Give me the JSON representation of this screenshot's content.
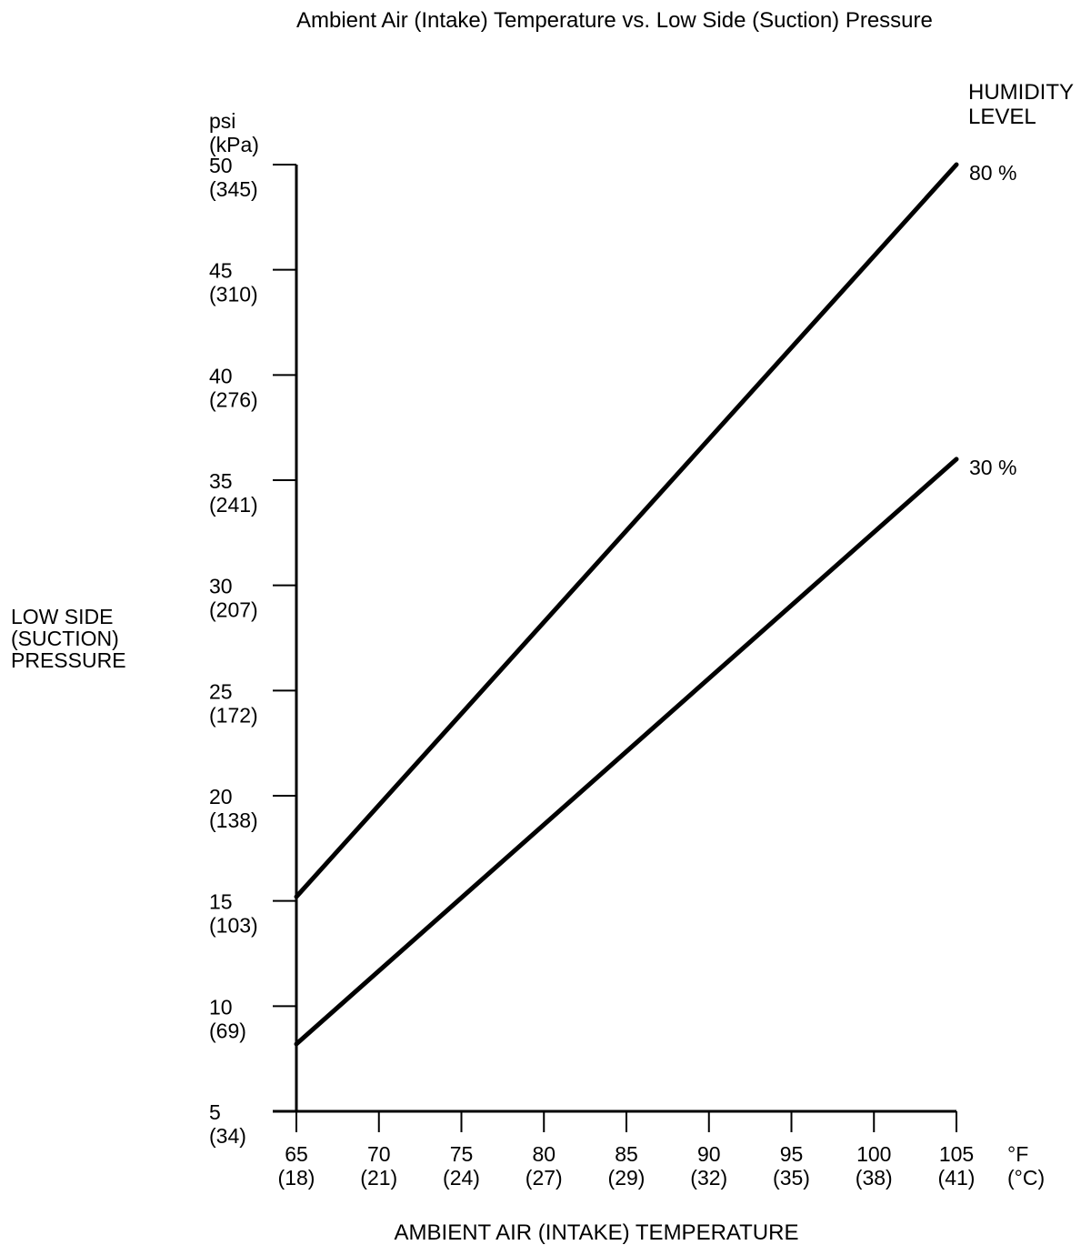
{
  "page": {
    "background_color": "#ffffff",
    "ink_color": "#000000"
  },
  "chart_data": {
    "type": "line",
    "title": "Ambient Air (Intake) Temperature vs. Low Side (Suction) Pressure",
    "grid": false,
    "legend_position": "top-right",
    "legend": {
      "title_lines": [
        "HUMIDITY",
        "LEVEL"
      ]
    },
    "x_axis": {
      "title": "AMBIENT AIR (INTAKE) TEMPERATURE",
      "unit_lines": [
        "°F",
        "(°C)"
      ],
      "range": [
        65,
        105
      ],
      "ticks": [
        {
          "value": 65,
          "f": "65",
          "c": "(18)"
        },
        {
          "value": 70,
          "f": "70",
          "c": "(21)"
        },
        {
          "value": 75,
          "f": "75",
          "c": "(24)"
        },
        {
          "value": 80,
          "f": "80",
          "c": "(27)"
        },
        {
          "value": 85,
          "f": "85",
          "c": "(29)"
        },
        {
          "value": 90,
          "f": "90",
          "c": "(32)"
        },
        {
          "value": 95,
          "f": "95",
          "c": "(35)"
        },
        {
          "value": 100,
          "f": "100",
          "c": "(38)"
        },
        {
          "value": 105,
          "f": "105",
          "c": "(41)"
        }
      ]
    },
    "y_axis": {
      "title_lines": [
        "LOW SIDE",
        "(SUCTION)",
        "PRESSURE"
      ],
      "unit_lines": [
        "psi",
        "(kPa)"
      ],
      "range": [
        5,
        50
      ],
      "ticks": [
        {
          "value": 50,
          "psi": "50",
          "kpa": "(345)"
        },
        {
          "value": 45,
          "psi": "45",
          "kpa": "(310)"
        },
        {
          "value": 40,
          "psi": "40",
          "kpa": "(276)"
        },
        {
          "value": 35,
          "psi": "35",
          "kpa": "(241)"
        },
        {
          "value": 30,
          "psi": "30",
          "kpa": "(207)"
        },
        {
          "value": 25,
          "psi": "25",
          "kpa": "(172)"
        },
        {
          "value": 20,
          "psi": "20",
          "kpa": "(138)"
        },
        {
          "value": 15,
          "psi": "15",
          "kpa": "(103)"
        },
        {
          "value": 10,
          "psi": "10",
          "kpa": "(69)"
        },
        {
          "value": 5,
          "psi": "5",
          "kpa": "(34)"
        }
      ]
    },
    "series": [
      {
        "name": "80 %",
        "humidity_percent": 80,
        "points": [
          {
            "temp_f": 65,
            "psi": 15.2
          },
          {
            "temp_f": 105,
            "psi": 50.0
          }
        ]
      },
      {
        "name": "30 %",
        "humidity_percent": 30,
        "points": [
          {
            "temp_f": 65,
            "psi": 8.2
          },
          {
            "temp_f": 105,
            "psi": 36.0
          }
        ]
      }
    ]
  }
}
